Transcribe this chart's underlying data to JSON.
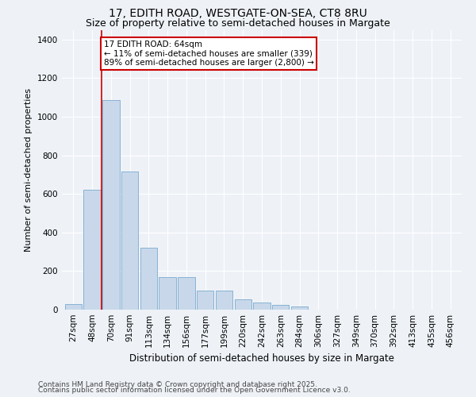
{
  "title_line1": "17, EDITH ROAD, WESTGATE-ON-SEA, CT8 8RU",
  "title_line2": "Size of property relative to semi-detached houses in Margate",
  "xlabel": "Distribution of semi-detached houses by size in Margate",
  "ylabel": "Number of semi-detached properties",
  "categories": [
    "27sqm",
    "48sqm",
    "70sqm",
    "91sqm",
    "113sqm",
    "134sqm",
    "156sqm",
    "177sqm",
    "199sqm",
    "220sqm",
    "242sqm",
    "263sqm",
    "284sqm",
    "306sqm",
    "327sqm",
    "349sqm",
    "370sqm",
    "392sqm",
    "413sqm",
    "435sqm",
    "456sqm"
  ],
  "values": [
    30,
    620,
    1085,
    715,
    320,
    170,
    170,
    100,
    100,
    55,
    35,
    25,
    15,
    0,
    0,
    0,
    0,
    0,
    0,
    0,
    0
  ],
  "bar_color": "#c8d8ea",
  "bar_edge_color": "#7aaacf",
  "vline_x_idx": 1.5,
  "vline_color": "#cc0000",
  "annotation_text": "17 EDITH ROAD: 64sqm\n← 11% of semi-detached houses are smaller (339)\n89% of semi-detached houses are larger (2,800) →",
  "annotation_box_color": "white",
  "annotation_box_edge": "#cc0000",
  "ylim": [
    0,
    1450
  ],
  "yticks": [
    0,
    200,
    400,
    600,
    800,
    1000,
    1200,
    1400
  ],
  "footer_line1": "Contains HM Land Registry data © Crown copyright and database right 2025.",
  "footer_line2": "Contains public sector information licensed under the Open Government Licence v3.0.",
  "background_color": "#eef2f7",
  "plot_background": "#eef2f7",
  "grid_color": "white",
  "title_fontsize": 10,
  "subtitle_fontsize": 9,
  "axis_label_fontsize": 8,
  "tick_fontsize": 7.5,
  "footer_fontsize": 6.5
}
